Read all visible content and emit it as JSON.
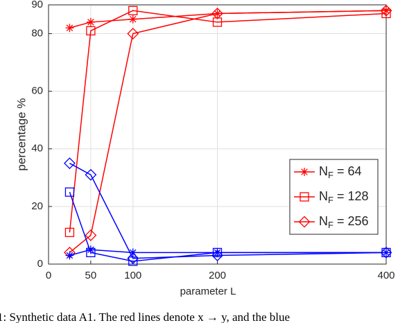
{
  "chart_data": {
    "type": "line",
    "x_label": "parameter L",
    "y_label": "percentage %",
    "x": [
      25,
      50,
      100,
      200,
      400
    ],
    "xlim": [
      0,
      400
    ],
    "xticks": [
      0,
      50,
      100,
      200,
      400
    ],
    "ylim": [
      0,
      90
    ],
    "yticks": [
      0,
      20,
      40,
      60,
      80,
      90
    ],
    "grid": true,
    "legend_position": "right",
    "series": [
      {
        "name": "NF = 64",
        "color": "#ff0000",
        "marker": "star",
        "values": [
          82,
          84,
          85,
          87,
          88
        ]
      },
      {
        "name": "NF = 128",
        "color": "#ff0000",
        "marker": "square",
        "values": [
          11,
          81,
          88,
          84,
          87
        ]
      },
      {
        "name": "NF = 256",
        "color": "#ff0000",
        "marker": "diamond",
        "values": [
          4,
          10,
          80,
          87,
          88
        ]
      },
      {
        "color": "#0000ff",
        "marker": "star",
        "values": [
          3,
          5,
          4,
          4,
          4
        ]
      },
      {
        "color": "#0000ff",
        "marker": "square",
        "values": [
          25,
          4,
          1,
          4,
          4
        ]
      },
      {
        "color": "#0000ff",
        "marker": "diamond",
        "values": [
          35,
          31,
          2,
          3,
          4
        ]
      }
    ],
    "caption": "1:  Synthetic data A1. The red lines denote x → y, and the blue"
  }
}
